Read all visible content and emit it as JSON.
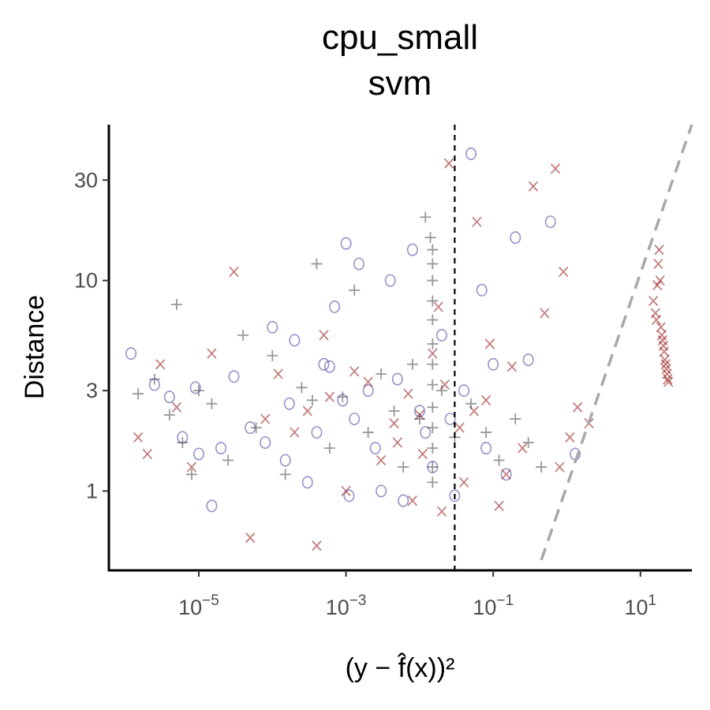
{
  "chart_data": {
    "type": "scatter",
    "title": "cpu_small",
    "subtitle": "svm",
    "xlabel": "(y − f̂(x))²",
    "ylabel": "Distance",
    "x_scale": "log10",
    "y_scale": "log10",
    "xlim": [
      6e-07,
      50
    ],
    "ylim": [
      0.42,
      55
    ],
    "x_ticks": [
      {
        "value": 1e-05,
        "base": "10",
        "exp": "−5"
      },
      {
        "value": 0.001,
        "base": "10",
        "exp": "−3"
      },
      {
        "value": 0.1,
        "base": "10",
        "exp": "−1"
      },
      {
        "value": 10,
        "base": "10",
        "exp": "1"
      }
    ],
    "y_ticks": [
      {
        "value": 1,
        "label": "1"
      },
      {
        "value": 3,
        "label": "3"
      },
      {
        "value": 10,
        "label": "10"
      },
      {
        "value": 30,
        "label": "30"
      }
    ],
    "vline_x": 0.03,
    "refline": {
      "x": [
        0.45,
        50
      ],
      "y": [
        0.47,
        55
      ],
      "color": "#a8a8a8"
    },
    "grid": false,
    "legend": "none",
    "series": [
      {
        "marker": "o",
        "color": "#3a3aa0",
        "points": [
          [
            1.2e-06,
            4.5
          ],
          [
            2.5e-06,
            3.2
          ],
          [
            4e-06,
            2.8
          ],
          [
            6e-06,
            1.8
          ],
          [
            1e-05,
            1.5
          ],
          [
            1.5e-05,
            0.85
          ],
          [
            2e-05,
            1.6
          ],
          [
            3e-05,
            3.5
          ],
          [
            5e-05,
            2.0
          ],
          [
            8e-05,
            1.7
          ],
          [
            0.0001,
            6.0
          ],
          [
            0.00015,
            1.4
          ],
          [
            0.0002,
            5.2
          ],
          [
            0.0003,
            1.1
          ],
          [
            0.0005,
            4.0
          ],
          [
            0.0007,
            7.5
          ],
          [
            0.001,
            15.0
          ],
          [
            0.0013,
            2.2
          ],
          [
            0.0015,
            12.0
          ],
          [
            0.002,
            3.0
          ],
          [
            0.003,
            1.0
          ],
          [
            0.004,
            10.0
          ],
          [
            0.006,
            0.9
          ],
          [
            0.008,
            14.0
          ],
          [
            0.01,
            2.4
          ],
          [
            0.015,
            1.3
          ],
          [
            0.02,
            5.5
          ],
          [
            0.03,
            0.95
          ],
          [
            0.05,
            40.0
          ],
          [
            0.07,
            9.0
          ],
          [
            0.1,
            4.0
          ],
          [
            0.15,
            1.2
          ],
          [
            0.2,
            16.0
          ],
          [
            0.3,
            4.2
          ],
          [
            0.6,
            19.0
          ],
          [
            1.3,
            1.5
          ],
          [
            9e-06,
            3.1
          ],
          [
            0.00017,
            2.6
          ],
          [
            0.0004,
            1.9
          ],
          [
            0.0009,
            2.7
          ],
          [
            0.0025,
            1.6
          ],
          [
            0.005,
            3.4
          ],
          [
            0.012,
            1.9
          ],
          [
            0.026,
            2.2
          ],
          [
            0.04,
            3.0
          ],
          [
            0.08,
            1.6
          ],
          [
            0.0011,
            0.95
          ],
          [
            0.0006,
            3.9
          ]
        ]
      },
      {
        "marker": "x",
        "color": "#8b0000",
        "points": [
          [
            1.5e-06,
            1.8
          ],
          [
            2e-06,
            1.5
          ],
          [
            3e-06,
            4.0
          ],
          [
            5e-06,
            2.5
          ],
          [
            8e-06,
            1.3
          ],
          [
            1.5e-05,
            4.5
          ],
          [
            3e-05,
            11.0
          ],
          [
            5e-05,
            0.6
          ],
          [
            8e-05,
            2.2
          ],
          [
            0.00012,
            3.6
          ],
          [
            0.0002,
            1.9
          ],
          [
            0.0004,
            0.55
          ],
          [
            0.0006,
            2.8
          ],
          [
            0.001,
            1.0
          ],
          [
            0.002,
            3.3
          ],
          [
            0.003,
            1.4
          ],
          [
            0.005,
            1.7
          ],
          [
            0.008,
            0.9
          ],
          [
            0.01,
            2.3
          ],
          [
            0.015,
            4.5
          ],
          [
            0.02,
            0.8
          ],
          [
            0.025,
            36.0
          ],
          [
            0.04,
            1.1
          ],
          [
            0.06,
            19.0
          ],
          [
            0.08,
            2.7
          ],
          [
            0.12,
            0.85
          ],
          [
            0.18,
            3.9
          ],
          [
            0.25,
            1.6
          ],
          [
            0.35,
            28.0
          ],
          [
            0.5,
            7.0
          ],
          [
            0.7,
            34.0
          ],
          [
            0.9,
            11.0
          ],
          [
            1.1,
            1.8
          ],
          [
            1.4,
            2.5
          ],
          [
            2.0,
            2.1
          ],
          [
            0.8,
            1.3
          ],
          [
            0.0005,
            5.5
          ],
          [
            0.007,
            2.9
          ],
          [
            0.018,
            7.5
          ],
          [
            0.035,
            2.0
          ],
          [
            0.09,
            5.0
          ],
          [
            0.15,
            1.2
          ],
          [
            0.0003,
            2.4
          ],
          [
            0.0013,
            3.7
          ],
          [
            0.0045,
            2.1
          ],
          [
            0.011,
            1.5
          ],
          [
            0.022,
            3.2
          ],
          [
            0.055,
            2.4
          ],
          [
            18,
            14.0
          ],
          [
            17,
            9.5
          ],
          [
            16,
            7.0
          ],
          [
            19,
            6.0
          ],
          [
            20,
            5.2
          ],
          [
            21,
            4.6
          ],
          [
            22,
            4.0
          ],
          [
            23,
            3.6
          ],
          [
            24,
            3.3
          ],
          [
            15,
            8.0
          ],
          [
            16.5,
            6.5
          ],
          [
            19.5,
            5.5
          ],
          [
            21.5,
            4.2
          ],
          [
            23.5,
            3.4
          ],
          [
            17.5,
            12.0
          ],
          [
            18.5,
            10.0
          ],
          [
            20.5,
            4.9
          ],
          [
            22.5,
            3.8
          ]
        ]
      },
      {
        "marker": "+",
        "color": "#333333",
        "points": [
          [
            1.5e-06,
            2.9
          ],
          [
            2.5e-06,
            3.4
          ],
          [
            4e-06,
            2.3
          ],
          [
            6e-06,
            1.7
          ],
          [
            1e-05,
            3.0
          ],
          [
            1.5e-05,
            2.6
          ],
          [
            2.5e-05,
            1.4
          ],
          [
            4e-05,
            5.5
          ],
          [
            6e-05,
            2.0
          ],
          [
            0.0001,
            4.4
          ],
          [
            0.00015,
            1.2
          ],
          [
            0.00025,
            3.1
          ],
          [
            0.0004,
            12.0
          ],
          [
            0.0006,
            1.6
          ],
          [
            0.0009,
            2.8
          ],
          [
            0.0013,
            9.0
          ],
          [
            0.002,
            1.9
          ],
          [
            0.003,
            3.6
          ],
          [
            0.0045,
            2.4
          ],
          [
            0.006,
            1.3
          ],
          [
            0.008,
            4.0
          ],
          [
            0.01,
            2.2
          ],
          [
            0.012,
            20.0
          ],
          [
            0.014,
            16.0
          ],
          [
            0.015,
            14.0
          ],
          [
            0.015,
            12.0
          ],
          [
            0.015,
            10.0
          ],
          [
            0.015,
            8.0
          ],
          [
            0.015,
            6.5
          ],
          [
            0.015,
            5.0
          ],
          [
            0.015,
            4.0
          ],
          [
            0.015,
            3.2
          ],
          [
            0.015,
            2.5
          ],
          [
            0.015,
            2.0
          ],
          [
            0.015,
            1.6
          ],
          [
            0.015,
            1.3
          ],
          [
            0.015,
            1.1
          ],
          [
            0.02,
            3.0
          ],
          [
            0.03,
            1.8
          ],
          [
            0.05,
            2.6
          ],
          [
            0.08,
            1.9
          ],
          [
            0.12,
            1.4
          ],
          [
            0.2,
            2.2
          ],
          [
            0.3,
            1.7
          ],
          [
            0.45,
            1.3
          ],
          [
            5e-06,
            7.7
          ],
          [
            8e-06,
            1.2
          ],
          [
            0.00035,
            2.7
          ]
        ]
      }
    ]
  }
}
